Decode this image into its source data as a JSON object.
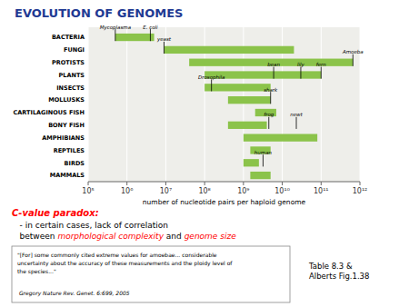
{
  "chart_data": {
    "type": "bar",
    "orientation": "horizontal",
    "title": "EVOLUTION OF GENOMES",
    "categories": [
      "BACTERIA",
      "FUNGI",
      "PROTISTS",
      "PLANTS",
      "INSECTS",
      "MOLLUSKS",
      "CARTILAGINOUS FISH",
      "BONY FISH",
      "AMPHIBIANS",
      "REPTILES",
      "BIRDS",
      "MAMMALS"
    ],
    "values": [
      [
        500000,
        5000000
      ],
      [
        9000000,
        20000000000
      ],
      [
        40000000,
        660000000000
      ],
      [
        100000000,
        100000000000
      ],
      [
        100000000,
        5000000000
      ],
      [
        400000000,
        5000000000
      ],
      [
        2000000000,
        7000000000
      ],
      [
        400000000,
        4000000000
      ],
      [
        1000000000,
        80000000000
      ],
      [
        1500000000,
        5000000000
      ],
      [
        1000000000,
        2500000000
      ],
      [
        1500000000,
        5000000000
      ]
    ],
    "color": "#8BC34A",
    "log": "x",
    "xlim": [
      100000,
      1000000000000
    ],
    "xticks": [
      {
        "value": 100000,
        "label": "10⁵"
      },
      {
        "value": 1000000,
        "label": "10⁶"
      },
      {
        "value": 10000000,
        "label": "10⁷"
      },
      {
        "value": 100000000,
        "label": "10⁸"
      },
      {
        "value": 1000000000,
        "label": "10⁹"
      },
      {
        "value": 10000000000,
        "label": "10¹⁰"
      },
      {
        "value": 100000000000,
        "label": "10¹¹"
      },
      {
        "value": 1000000000000,
        "label": "10¹²"
      }
    ],
    "grid": true,
    "xlabel": "number of nucleotide pairs per haploid genome",
    "annotations": [
      {
        "text": "Mycoplasma",
        "x": 500000,
        "category": "BACTERIA"
      },
      {
        "text": "E. coli",
        "x": 4000000,
        "category": "BACTERIA"
      },
      {
        "text": "yeast",
        "x": 9000000,
        "category": "FUNGI"
      },
      {
        "text": "Amoeba",
        "x": 660000000000,
        "category": "PROTISTS"
      },
      {
        "text": "bean",
        "x": 6000000000,
        "category": "PLANTS"
      },
      {
        "text": "lily",
        "x": 30000000000,
        "category": "PLANTS"
      },
      {
        "text": "fern",
        "x": 100000000000,
        "category": "PLANTS"
      },
      {
        "text": "Drosophila",
        "x": 150000000,
        "category": "INSECTS"
      },
      {
        "text": "shark",
        "x": 5000000000,
        "category": "MOLLUSKS"
      },
      {
        "text": "frog",
        "x": 4500000000,
        "category": "BONY FISH"
      },
      {
        "text": "newt",
        "x": 23000000000,
        "category": "BONY FISH"
      },
      {
        "text": "human",
        "x": 3200000000,
        "category": "BIRDS"
      }
    ],
    "text_lines": [
      [
        {
          "text": "C-value paradox:",
          "color": "red"
        }
      ],
      [
        {
          "text": "   - in certain cases, lack of correlation",
          "color": "black"
        }
      ],
      [
        {
          "text": "   between ",
          "color": "black"
        },
        {
          "text": "morphological complexity",
          "color": "red"
        },
        {
          "text": " and ",
          "color": "black"
        },
        {
          "text": "genome size",
          "color": "red"
        }
      ]
    ],
    "footnote": "\"[For] some commonly cited extreme values for amoebae... considerable\nuncertainty about the accuracy of these measurements and the ploidy level of\nthe species...\"",
    "citation": " Gregory Nature Rev. Genet. 6:699, 2005",
    "table_ref": "Table 8.3 &\nAlberts Fig.1.38"
  }
}
